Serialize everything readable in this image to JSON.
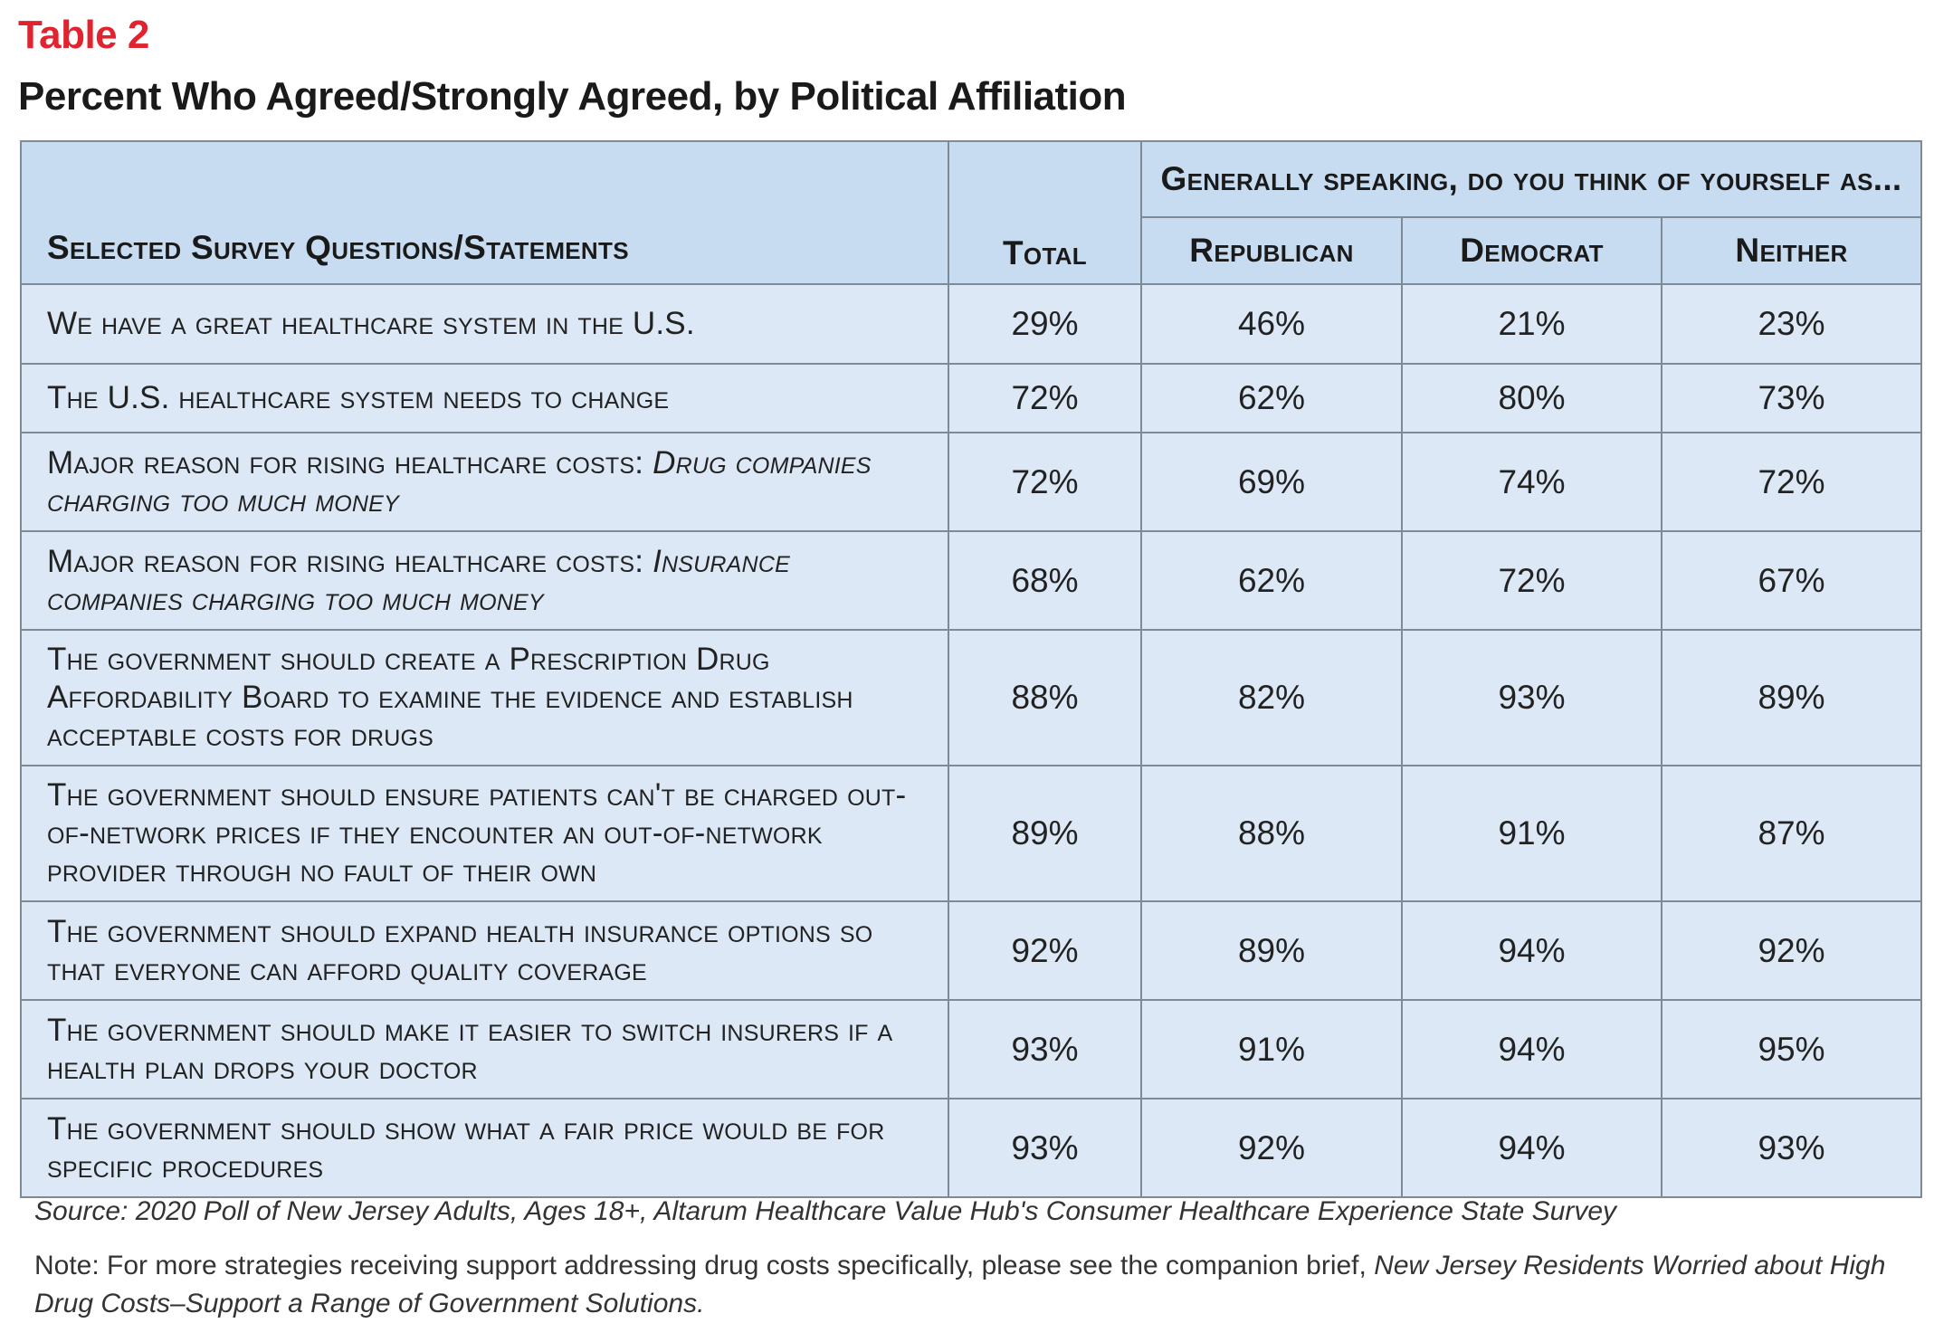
{
  "table_label": "Table 2",
  "title": "Percent Who Agreed/Strongly Agreed, by Political Affiliation",
  "header": {
    "question": "Selected Survey Questions/Statements",
    "total": "Total",
    "group": "Generally speaking, do you think of yourself as...",
    "republican": "Republican",
    "democrat": "Democrat",
    "neither": "Neither"
  },
  "rows": [
    {
      "q": "We have a great healthcare system in the U.S.",
      "q_italic": "",
      "total": "29%",
      "republican": "46%",
      "democrat": "21%",
      "neither": "23%"
    },
    {
      "q": "The U.S. healthcare system needs to change",
      "q_italic": "",
      "total": "72%",
      "republican": "62%",
      "democrat": "80%",
      "neither": "73%"
    },
    {
      "q": "Major reason for rising healthcare costs:  ",
      "q_italic": "Drug companies charging too much money",
      "total": "72%",
      "republican": "69%",
      "democrat": "74%",
      "neither": "72%"
    },
    {
      "q": "Major reason for rising healthcare costs: ",
      "q_italic": "Insurance companies charging too much money",
      "total": "68%",
      "republican": "62%",
      "democrat": "72%",
      "neither": "67%"
    },
    {
      "q": "The government should create a Prescription Drug Affordability Board to examine the evidence and establish acceptable costs for drugs",
      "q_italic": "",
      "total": "88%",
      "republican": "82%",
      "democrat": "93%",
      "neither": "89%"
    },
    {
      "q": "The government should ensure patients can't be charged out-of-network prices if they encounter an out-of-network provider through no fault of their own",
      "q_italic": "",
      "total": "89%",
      "republican": "88%",
      "democrat": "91%",
      "neither": "87%"
    },
    {
      "q": "The government should expand health insurance options so that everyone can afford quality coverage",
      "q_italic": "",
      "total": "92%",
      "republican": "89%",
      "democrat": "94%",
      "neither": "92%"
    },
    {
      "q": "The government should make it easier to switch insurers if a health plan drops your doctor",
      "q_italic": "",
      "total": "93%",
      "republican": "91%",
      "democrat": "94%",
      "neither": "95%"
    },
    {
      "q": "The government should show what a fair price would be for specific procedures",
      "q_italic": "",
      "total": "93%",
      "republican": "92%",
      "democrat": "94%",
      "neither": "93%"
    }
  ],
  "source": "Source: 2020 Poll of New Jersey Adults, Ages 18+, Altarum Healthcare Value Hub's Consumer Healthcare Experience State Survey",
  "note_prefix": "Note: For more strategies receiving support addressing drug costs specifically, please see the companion brief, ",
  "note_italic": "New Jersey Residents Worried about High Drug Costs–Support a Range of Government Solutions."
}
